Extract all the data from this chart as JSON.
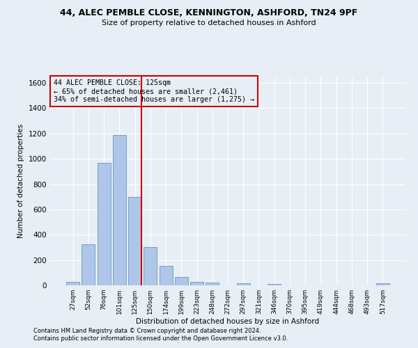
{
  "title_line1": "44, ALEC PEMBLE CLOSE, KENNINGTON, ASHFORD, TN24 9PF",
  "title_line2": "Size of property relative to detached houses in Ashford",
  "xlabel": "Distribution of detached houses by size in Ashford",
  "ylabel": "Number of detached properties",
  "bar_labels": [
    "27sqm",
    "52sqm",
    "76sqm",
    "101sqm",
    "125sqm",
    "150sqm",
    "174sqm",
    "199sqm",
    "223sqm",
    "248sqm",
    "272sqm",
    "297sqm",
    "321sqm",
    "346sqm",
    "370sqm",
    "395sqm",
    "419sqm",
    "444sqm",
    "468sqm",
    "493sqm",
    "517sqm"
  ],
  "bar_values": [
    30,
    325,
    970,
    1190,
    700,
    300,
    155,
    65,
    25,
    20,
    0,
    15,
    0,
    10,
    0,
    0,
    0,
    0,
    0,
    0,
    15
  ],
  "bar_color": "#aec6e8",
  "bar_edgecolor": "#5588bb",
  "highlight_index": 4,
  "vline_color": "#cc0000",
  "ylim": [
    0,
    1650
  ],
  "yticks": [
    0,
    200,
    400,
    600,
    800,
    1000,
    1200,
    1400,
    1600
  ],
  "annotation_text": "44 ALEC PEMBLE CLOSE: 125sqm\n← 65% of detached houses are smaller (2,461)\n34% of semi-detached houses are larger (1,275) →",
  "annotation_box_color": "#cc0000",
  "footer1": "Contains HM Land Registry data © Crown copyright and database right 2024.",
  "footer2": "Contains public sector information licensed under the Open Government Licence v3.0.",
  "bg_color": "#e8eef5",
  "grid_color": "#ffffff"
}
